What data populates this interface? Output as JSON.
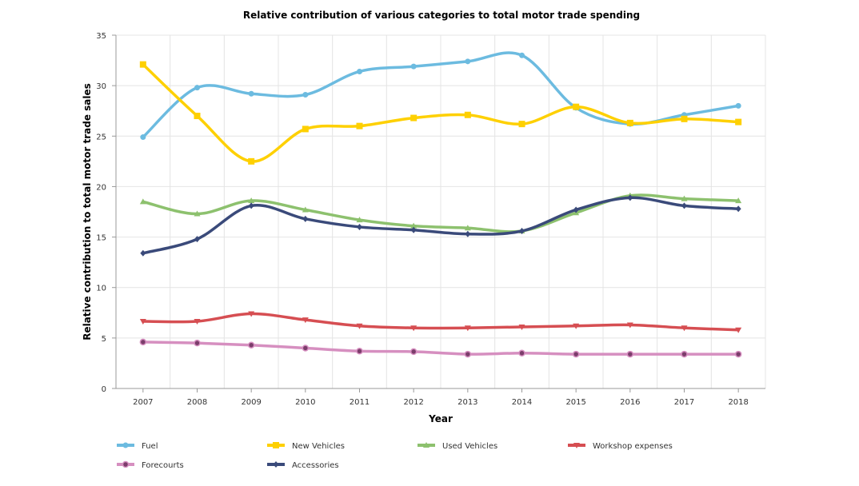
{
  "chart_data": {
    "type": "line",
    "title": "Relative contribution of various categories to total motor trade spending",
    "xlabel": "Year",
    "ylabel": "Relative contribution to total motor trade sales",
    "ylim": [
      0,
      35
    ],
    "yticks": [
      0,
      5,
      10,
      15,
      20,
      25,
      30,
      35
    ],
    "grid": true,
    "legend_position": "bottom",
    "smooth": true,
    "categories": [
      "2007",
      "2008",
      "2009",
      "2010",
      "2011",
      "2012",
      "2013",
      "2014",
      "2015",
      "2016",
      "2017",
      "2018"
    ],
    "series": [
      {
        "name": "Fuel",
        "color": "#6cbbe0",
        "marker": "circle",
        "values": [
          24.9,
          29.8,
          29.2,
          29.1,
          31.4,
          31.9,
          32.4,
          33.0,
          27.8,
          26.2,
          27.1,
          28.0
        ]
      },
      {
        "name": "New Vehicles",
        "color": "#fed000",
        "marker": "square",
        "values": [
          32.1,
          27.0,
          22.5,
          25.7,
          26.0,
          26.8,
          27.1,
          26.2,
          27.9,
          26.3,
          26.7,
          26.4
        ]
      },
      {
        "name": "Used Vehicles",
        "color": "#8dc16e",
        "marker": "triangle",
        "values": [
          18.5,
          17.3,
          18.6,
          17.7,
          16.7,
          16.1,
          15.9,
          15.6,
          17.4,
          19.1,
          18.8,
          18.6
        ]
      },
      {
        "name": "Workshop expenses",
        "color": "#d64e52",
        "marker": "triangle-down",
        "values": [
          6.65,
          6.65,
          7.4,
          6.8,
          6.2,
          6.0,
          6.0,
          6.1,
          6.2,
          6.3,
          6.0,
          5.8
        ]
      },
      {
        "name": "Forecourts",
        "color": "#d68fc0",
        "marker": "circle-dark",
        "values": [
          4.6,
          4.5,
          4.3,
          4.0,
          3.7,
          3.65,
          3.4,
          3.5,
          3.4,
          3.4,
          3.4,
          3.4
        ]
      },
      {
        "name": "Accessories",
        "color": "#3a4a7a",
        "marker": "diamond",
        "values": [
          13.4,
          14.8,
          18.1,
          16.8,
          16.0,
          15.7,
          15.3,
          15.6,
          17.7,
          18.9,
          18.1,
          17.8
        ]
      }
    ]
  }
}
